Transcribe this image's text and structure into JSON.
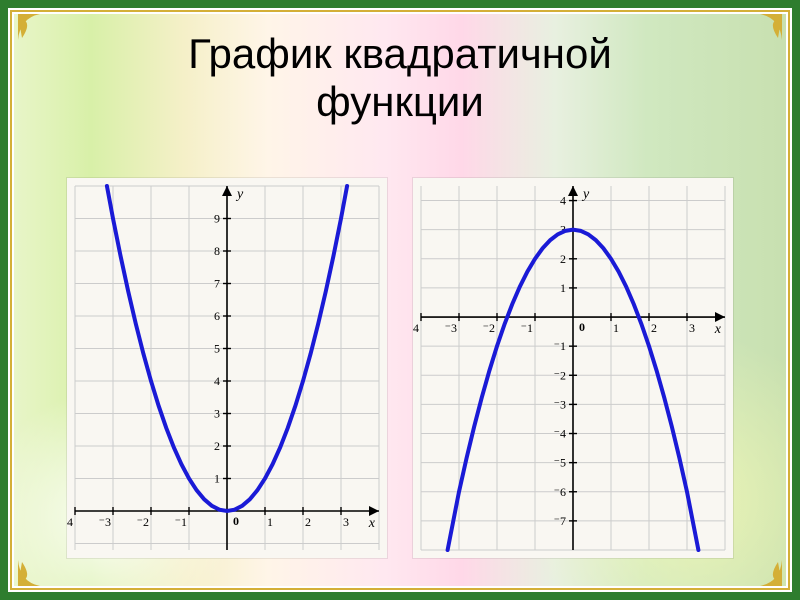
{
  "frame": {
    "outer_border_color": "#2e7d2e",
    "inner_border_color": "#d4af37",
    "bg_gradient_stops": [
      "#e8f5c8",
      "#d8f0a8",
      "#f5f0c8",
      "#fff5e8",
      "#ffe8f0",
      "#ffd8e8",
      "#e8f0e0",
      "#d0e8c0",
      "#c8e0b0"
    ],
    "corner_fill": "#d4af37"
  },
  "title": {
    "line1": "График квадратичной",
    "line2": "функции",
    "fontsize": 42,
    "color": "#000000",
    "font_family": "Arial, sans-serif"
  },
  "left_chart": {
    "type": "line",
    "description": "upward parabola y = x^2",
    "background_color": "#f9f7f2",
    "grid_color": "#cccccc",
    "axis_color": "#000000",
    "curve_color": "#1a1ad6",
    "curve_width": 4,
    "tick_fontsize": 12,
    "axis_label_fontsize": 14,
    "x_axis_label": "x",
    "y_axis_label": "y",
    "origin_label": "0",
    "xlim": [
      -4,
      4
    ],
    "ylim": [
      -1.2,
      10
    ],
    "x_ticks": [
      -4,
      -3,
      -2,
      -1,
      1,
      2,
      3
    ],
    "y_ticks": [
      1,
      2,
      3,
      4,
      5,
      6,
      7,
      8,
      9
    ],
    "x_tick_labels": [
      "⁻4",
      "⁻3",
      "⁻2",
      "⁻1",
      "1",
      "2",
      "3"
    ],
    "y_tick_labels": [
      "1",
      "2",
      "3",
      "4",
      "5",
      "6",
      "7",
      "8",
      "9"
    ],
    "curve_points": [
      [
        -3.16,
        10
      ],
      [
        -3.0,
        9.0
      ],
      [
        -2.8,
        7.84
      ],
      [
        -2.6,
        6.76
      ],
      [
        -2.4,
        5.76
      ],
      [
        -2.2,
        4.84
      ],
      [
        -2.0,
        4.0
      ],
      [
        -1.8,
        3.24
      ],
      [
        -1.6,
        2.56
      ],
      [
        -1.4,
        1.96
      ],
      [
        -1.2,
        1.44
      ],
      [
        -1.0,
        1.0
      ],
      [
        -0.8,
        0.64
      ],
      [
        -0.6,
        0.36
      ],
      [
        -0.4,
        0.16
      ],
      [
        -0.2,
        0.04
      ],
      [
        0,
        0
      ],
      [
        0.2,
        0.04
      ],
      [
        0.4,
        0.16
      ],
      [
        0.6,
        0.36
      ],
      [
        0.8,
        0.64
      ],
      [
        1.0,
        1.0
      ],
      [
        1.2,
        1.44
      ],
      [
        1.4,
        1.96
      ],
      [
        1.6,
        2.56
      ],
      [
        1.8,
        3.24
      ],
      [
        2.0,
        4.0
      ],
      [
        2.2,
        4.84
      ],
      [
        2.4,
        5.76
      ],
      [
        2.6,
        6.76
      ],
      [
        2.8,
        7.84
      ],
      [
        3.0,
        9.0
      ],
      [
        3.16,
        10
      ]
    ]
  },
  "right_chart": {
    "type": "line",
    "description": "downward parabola y ≈ -x^2 + 3",
    "background_color": "#f9f7f2",
    "grid_color": "#cccccc",
    "axis_color": "#000000",
    "curve_color": "#1a1ad6",
    "curve_width": 4,
    "tick_fontsize": 12,
    "axis_label_fontsize": 14,
    "x_axis_label": "x",
    "y_axis_label": "y",
    "origin_label": "0",
    "xlim": [
      -4,
      4
    ],
    "ylim": [
      -8,
      4.5
    ],
    "x_ticks": [
      -4,
      -3,
      -2,
      -1,
      1,
      2,
      3
    ],
    "y_ticks": [
      -7,
      -6,
      -5,
      -4,
      -3,
      -2,
      -1,
      1,
      2,
      3,
      4
    ],
    "x_tick_labels": [
      "⁻4",
      "⁻3",
      "⁻2",
      "⁻1",
      "1",
      "2",
      "3"
    ],
    "y_tick_labels": [
      "⁻7",
      "⁻6",
      "⁻5",
      "⁻4",
      "⁻3",
      "⁻2",
      "⁻1",
      "1",
      "2",
      "3",
      "4"
    ],
    "curve_points": [
      [
        -3.3,
        -8
      ],
      [
        -3.0,
        -6.0
      ],
      [
        -2.8,
        -4.84
      ],
      [
        -2.6,
        -3.76
      ],
      [
        -2.4,
        -2.76
      ],
      [
        -2.2,
        -1.84
      ],
      [
        -2.0,
        -1.0
      ],
      [
        -1.8,
        -0.24
      ],
      [
        -1.6,
        0.44
      ],
      [
        -1.4,
        1.04
      ],
      [
        -1.2,
        1.56
      ],
      [
        -1.0,
        2.0
      ],
      [
        -0.8,
        2.36
      ],
      [
        -0.6,
        2.64
      ],
      [
        -0.4,
        2.84
      ],
      [
        -0.2,
        2.96
      ],
      [
        0,
        3.0
      ],
      [
        0.2,
        2.96
      ],
      [
        0.4,
        2.84
      ],
      [
        0.6,
        2.64
      ],
      [
        0.8,
        2.36
      ],
      [
        1.0,
        2.0
      ],
      [
        1.2,
        1.56
      ],
      [
        1.4,
        1.04
      ],
      [
        1.6,
        0.44
      ],
      [
        1.8,
        -0.24
      ],
      [
        2.0,
        -1.0
      ],
      [
        2.2,
        -1.84
      ],
      [
        2.4,
        -2.76
      ],
      [
        2.6,
        -3.76
      ],
      [
        2.8,
        -4.84
      ],
      [
        3.0,
        -6.0
      ],
      [
        3.3,
        -8
      ]
    ]
  }
}
